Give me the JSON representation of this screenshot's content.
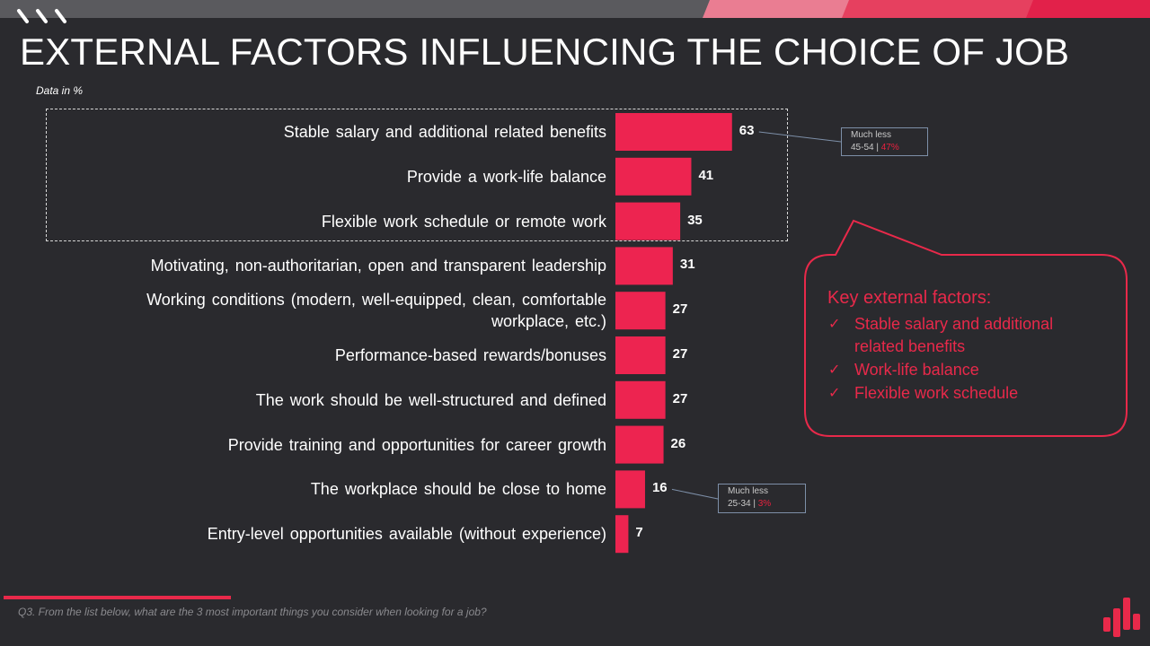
{
  "title": "EXTERNAL FACTORS INFLUENCING THE CHOICE OF JOB",
  "subtitle": "Data in %",
  "colors": {
    "bar": "#ed2450",
    "accent": "#e8294a",
    "background": "#2a2a2e"
  },
  "chart_data": {
    "type": "bar",
    "orientation": "horizontal",
    "categories": [
      "Stable salary and additional related benefits",
      "Provide a work-life balance",
      "Flexible work schedule or remote work",
      "Motivating, non-authoritarian, open and transparent leadership",
      "Working conditions (modern, well-equipped, clean, comfortable workplace, etc.)",
      "Performance-based rewards/bonuses",
      "The work should be well-structured and defined",
      "Provide training and opportunities for career growth",
      "The workplace should be close to home",
      "Entry-level opportunities available (without experience)"
    ],
    "values": [
      63,
      41,
      35,
      31,
      27,
      27,
      27,
      26,
      16,
      7
    ],
    "highlighted_categories": 3
  },
  "callouts": [
    {
      "label": "Much less",
      "group": "45-54",
      "sep": "|",
      "value": "47%"
    },
    {
      "label": "Much less",
      "group": "25-34",
      "sep": "|",
      "value": "3%"
    }
  ],
  "key_box": {
    "title": "Key external factors:",
    "items": [
      "Stable salary and additional related benefits",
      "Work-life balance",
      "Flexible work schedule"
    ],
    "check_glyph": "✓"
  },
  "footnote": "Q3. From the list below, what are the 3 most important things you consider when looking for a job?"
}
